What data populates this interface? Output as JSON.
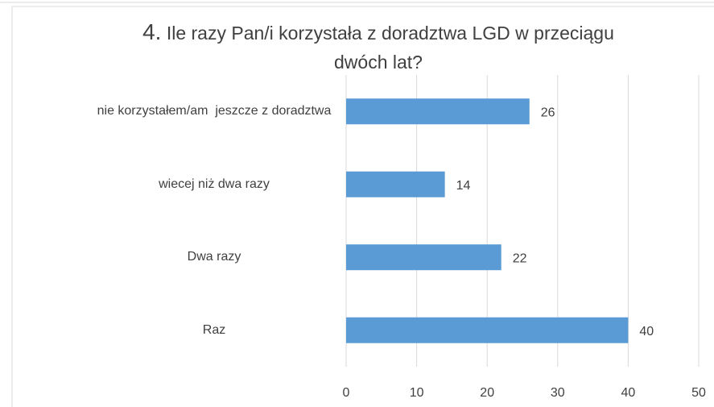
{
  "chart_data": {
    "type": "bar",
    "orientation": "horizontal",
    "title_number": "4.",
    "title": "Ile razy Pan/i korzystała z doradztwa LGD w przeciągu dwóch lat?",
    "categories": [
      "nie korzystałem/am  jeszcze z doradztwa",
      "wiecej niż dwa razy",
      "Dwa razy",
      "Raz"
    ],
    "values": [
      26,
      14,
      22,
      40
    ],
    "color": "#5b9bd5",
    "xlim": [
      0,
      50
    ],
    "xticks": [
      0,
      10,
      20,
      30,
      40,
      50
    ],
    "grid": true
  }
}
